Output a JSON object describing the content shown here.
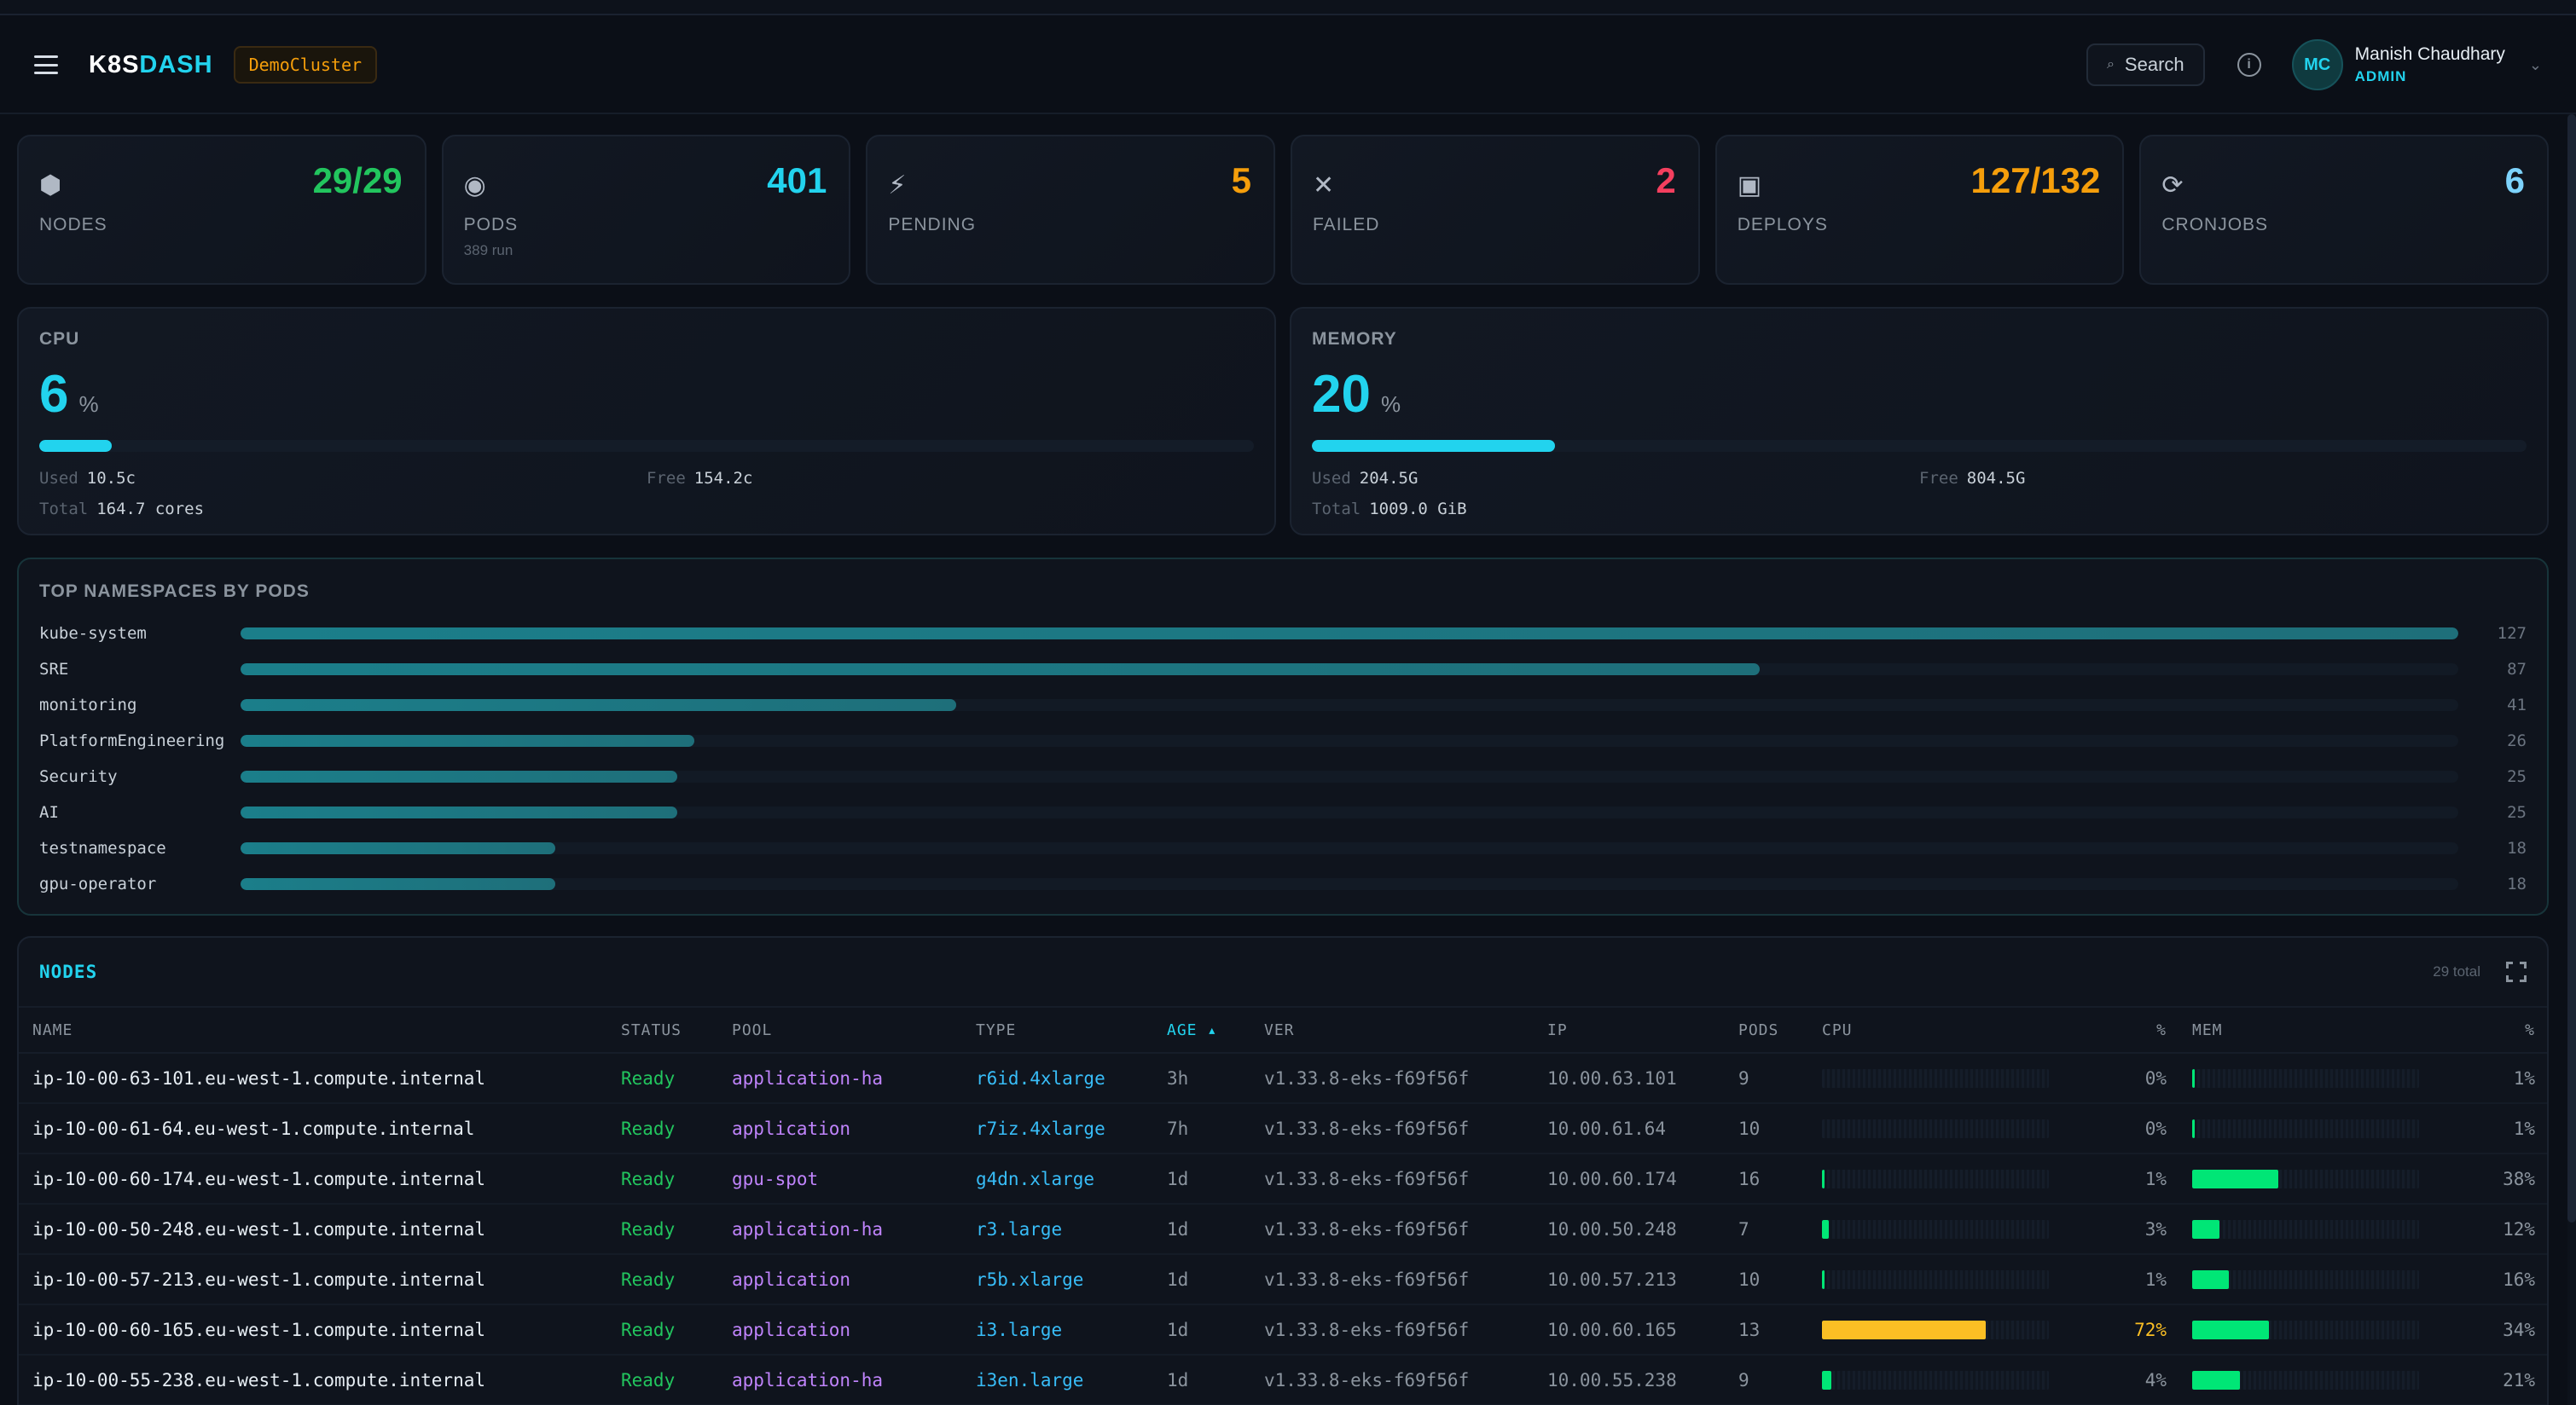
{
  "header": {
    "logo_main": "K8S",
    "logo_accent": "DASH",
    "cluster": "DemoCluster",
    "search_label": "Search",
    "user": {
      "initials": "MC",
      "name": "Manish Chaudhary",
      "role": "ADMIN"
    }
  },
  "stats": [
    {
      "icon": "hexagon-icon",
      "glyph": "⬢",
      "value": "29/29",
      "label": "NODES",
      "sub": "",
      "color": "#22c55e"
    },
    {
      "icon": "pod-icon",
      "glyph": "◉",
      "value": "401",
      "label": "PODS",
      "sub": "389 run",
      "color": "#22d3ee"
    },
    {
      "icon": "lightning-icon",
      "glyph": "⚡",
      "value": "5",
      "label": "PENDING",
      "sub": "",
      "color": "#f59e0b"
    },
    {
      "icon": "x-icon",
      "glyph": "✕",
      "value": "2",
      "label": "FAILED",
      "sub": "",
      "color": "#f43f5e"
    },
    {
      "icon": "square-icon",
      "glyph": "▣",
      "value": "127/132",
      "label": "DEPLOYS",
      "sub": "",
      "color": "#f59e0b"
    },
    {
      "icon": "refresh-icon",
      "glyph": "⟳",
      "value": "6",
      "label": "CRONJOBS",
      "sub": "",
      "color": "#7dd3fc"
    }
  ],
  "cpu": {
    "title": "CPU",
    "value": "6",
    "unit": "%",
    "percent": 6,
    "used_label": "Used",
    "used": "10.5c",
    "free_label": "Free",
    "free": "154.2c",
    "total_label": "Total",
    "total": "164.7 cores"
  },
  "memory": {
    "title": "MEMORY",
    "value": "20",
    "unit": "%",
    "percent": 20,
    "used_label": "Used",
    "used": "204.5G",
    "free_label": "Free",
    "free": "804.5G",
    "total_label": "Total",
    "total": "1009.0 GiB"
  },
  "namespaces": {
    "title": "TOP NAMESPACES BY PODS",
    "max": 127,
    "items": [
      {
        "name": "kube-system",
        "count": 127
      },
      {
        "name": "SRE",
        "count": 87
      },
      {
        "name": "monitoring",
        "count": 41
      },
      {
        "name": "PlatformEngineering",
        "count": 26
      },
      {
        "name": "Security",
        "count": 25
      },
      {
        "name": "AI",
        "count": 25
      },
      {
        "name": "testnamespace",
        "count": 18
      },
      {
        "name": "gpu-operator",
        "count": 18
      }
    ]
  },
  "nodes": {
    "title": "NODES",
    "total": "29 total",
    "columns": {
      "name": "NAME",
      "status": "STATUS",
      "pool": "POOL",
      "type": "TYPE",
      "age": "AGE ▴",
      "ver": "VER",
      "ip": "IP",
      "pods": "PODS",
      "cpu": "CPU",
      "cpu_pct": "%",
      "mem": "MEM",
      "mem_pct": "%"
    },
    "rows": [
      {
        "name": "ip-10-00-63-101.eu-west-1.compute.internal",
        "status": "Ready",
        "pool": "application-ha",
        "type": "r6id.4xlarge",
        "age": "3h",
        "ver": "v1.33.8-eks-f69f56f",
        "ip": "10.00.63.101",
        "pods": "9",
        "cpu": 0,
        "cpu_label": "0%",
        "mem": 1,
        "mem_label": "1%"
      },
      {
        "name": "ip-10-00-61-64.eu-west-1.compute.internal",
        "status": "Ready",
        "pool": "application",
        "type": "r7iz.4xlarge",
        "age": "7h",
        "ver": "v1.33.8-eks-f69f56f",
        "ip": "10.00.61.64",
        "pods": "10",
        "cpu": 0,
        "cpu_label": "0%",
        "mem": 1,
        "mem_label": "1%"
      },
      {
        "name": "ip-10-00-60-174.eu-west-1.compute.internal",
        "status": "Ready",
        "pool": "gpu-spot",
        "type": "g4dn.xlarge",
        "age": "1d",
        "ver": "v1.33.8-eks-f69f56f",
        "ip": "10.00.60.174",
        "pods": "16",
        "cpu": 1,
        "cpu_label": "1%",
        "mem": 38,
        "mem_label": "38%"
      },
      {
        "name": "ip-10-00-50-248.eu-west-1.compute.internal",
        "status": "Ready",
        "pool": "application-ha",
        "type": "r3.large",
        "age": "1d",
        "ver": "v1.33.8-eks-f69f56f",
        "ip": "10.00.50.248",
        "pods": "7",
        "cpu": 3,
        "cpu_label": "3%",
        "mem": 12,
        "mem_label": "12%"
      },
      {
        "name": "ip-10-00-57-213.eu-west-1.compute.internal",
        "status": "Ready",
        "pool": "application",
        "type": "r5b.xlarge",
        "age": "1d",
        "ver": "v1.33.8-eks-f69f56f",
        "ip": "10.00.57.213",
        "pods": "10",
        "cpu": 1,
        "cpu_label": "1%",
        "mem": 16,
        "mem_label": "16%"
      },
      {
        "name": "ip-10-00-60-165.eu-west-1.compute.internal",
        "status": "Ready",
        "pool": "application",
        "type": "i3.large",
        "age": "1d",
        "ver": "v1.33.8-eks-f69f56f",
        "ip": "10.00.60.165",
        "pods": "13",
        "cpu": 72,
        "cpu_label": "72%",
        "mem": 34,
        "mem_label": "34%"
      },
      {
        "name": "ip-10-00-55-238.eu-west-1.compute.internal",
        "status": "Ready",
        "pool": "application-ha",
        "type": "i3en.large",
        "age": "1d",
        "ver": "v1.33.8-eks-f69f56f",
        "ip": "10.00.55.238",
        "pods": "9",
        "cpu": 4,
        "cpu_label": "4%",
        "mem": 21,
        "mem_label": "21%"
      }
    ]
  },
  "colors": {
    "accent": "#22d3ee",
    "ok": "#22c55e",
    "warn": "#f59e0b",
    "mem_bar": "#00e676",
    "cpu_low": "#00e676",
    "cpu_high": "#fbbf24"
  }
}
